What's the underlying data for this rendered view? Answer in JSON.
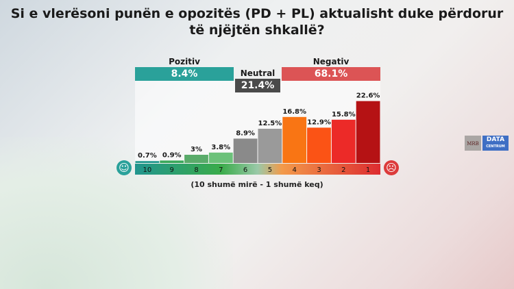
{
  "title_lines": [
    "Si e vlerësoni punën e opozitës (PD + PL) aktualisht duke përdorur",
    "të njëjtën shkallë?"
  ],
  "groups": {
    "positive": {
      "label": "Pozitiv",
      "value": "8.4%",
      "color": "#2aa19a"
    },
    "neutral": {
      "label": "Neutral",
      "value": "21.4%",
      "color": "#4a4a4a"
    },
    "negative": {
      "label": "Negativ",
      "value": "68.1%",
      "color": "#dc5455"
    }
  },
  "footnote": "(10 shumë mirë - 1 shumë keq)",
  "logos": {
    "mrb": "MRB",
    "data": "DATA",
    "centrum": "CENTRUM"
  },
  "icons": {
    "happy": "smiley-icon",
    "sad": "frown-icon"
  },
  "chart_data": {
    "type": "bar",
    "title": "Si e vlerësoni punën e opozitës (PD + PL) aktualisht duke përdorur të njëjtën shkallë?",
    "xlabel": "(10 shumë mirë - 1 shumë keq)",
    "ylabel": "",
    "categories": [
      "10",
      "9",
      "8",
      "7",
      "6",
      "5",
      "4",
      "3",
      "2",
      "1"
    ],
    "values": [
      0.7,
      0.9,
      3,
      3.8,
      8.9,
      12.5,
      16.8,
      12.9,
      15.8,
      22.6
    ],
    "labels": [
      "0.7%",
      "0.9%",
      "3%",
      "3.8%",
      "8.9%",
      "12.5%",
      "16.8%",
      "12.9%",
      "15.8%",
      "22.6%"
    ],
    "colors": [
      "#23998f",
      "#3aa85a",
      "#5aab6a",
      "#6cc17a",
      "#8a8a8a",
      "#9a9a9a",
      "#f97514",
      "#fb5315",
      "#ec2a28",
      "#b51214"
    ],
    "ylim": [
      0,
      24
    ]
  }
}
